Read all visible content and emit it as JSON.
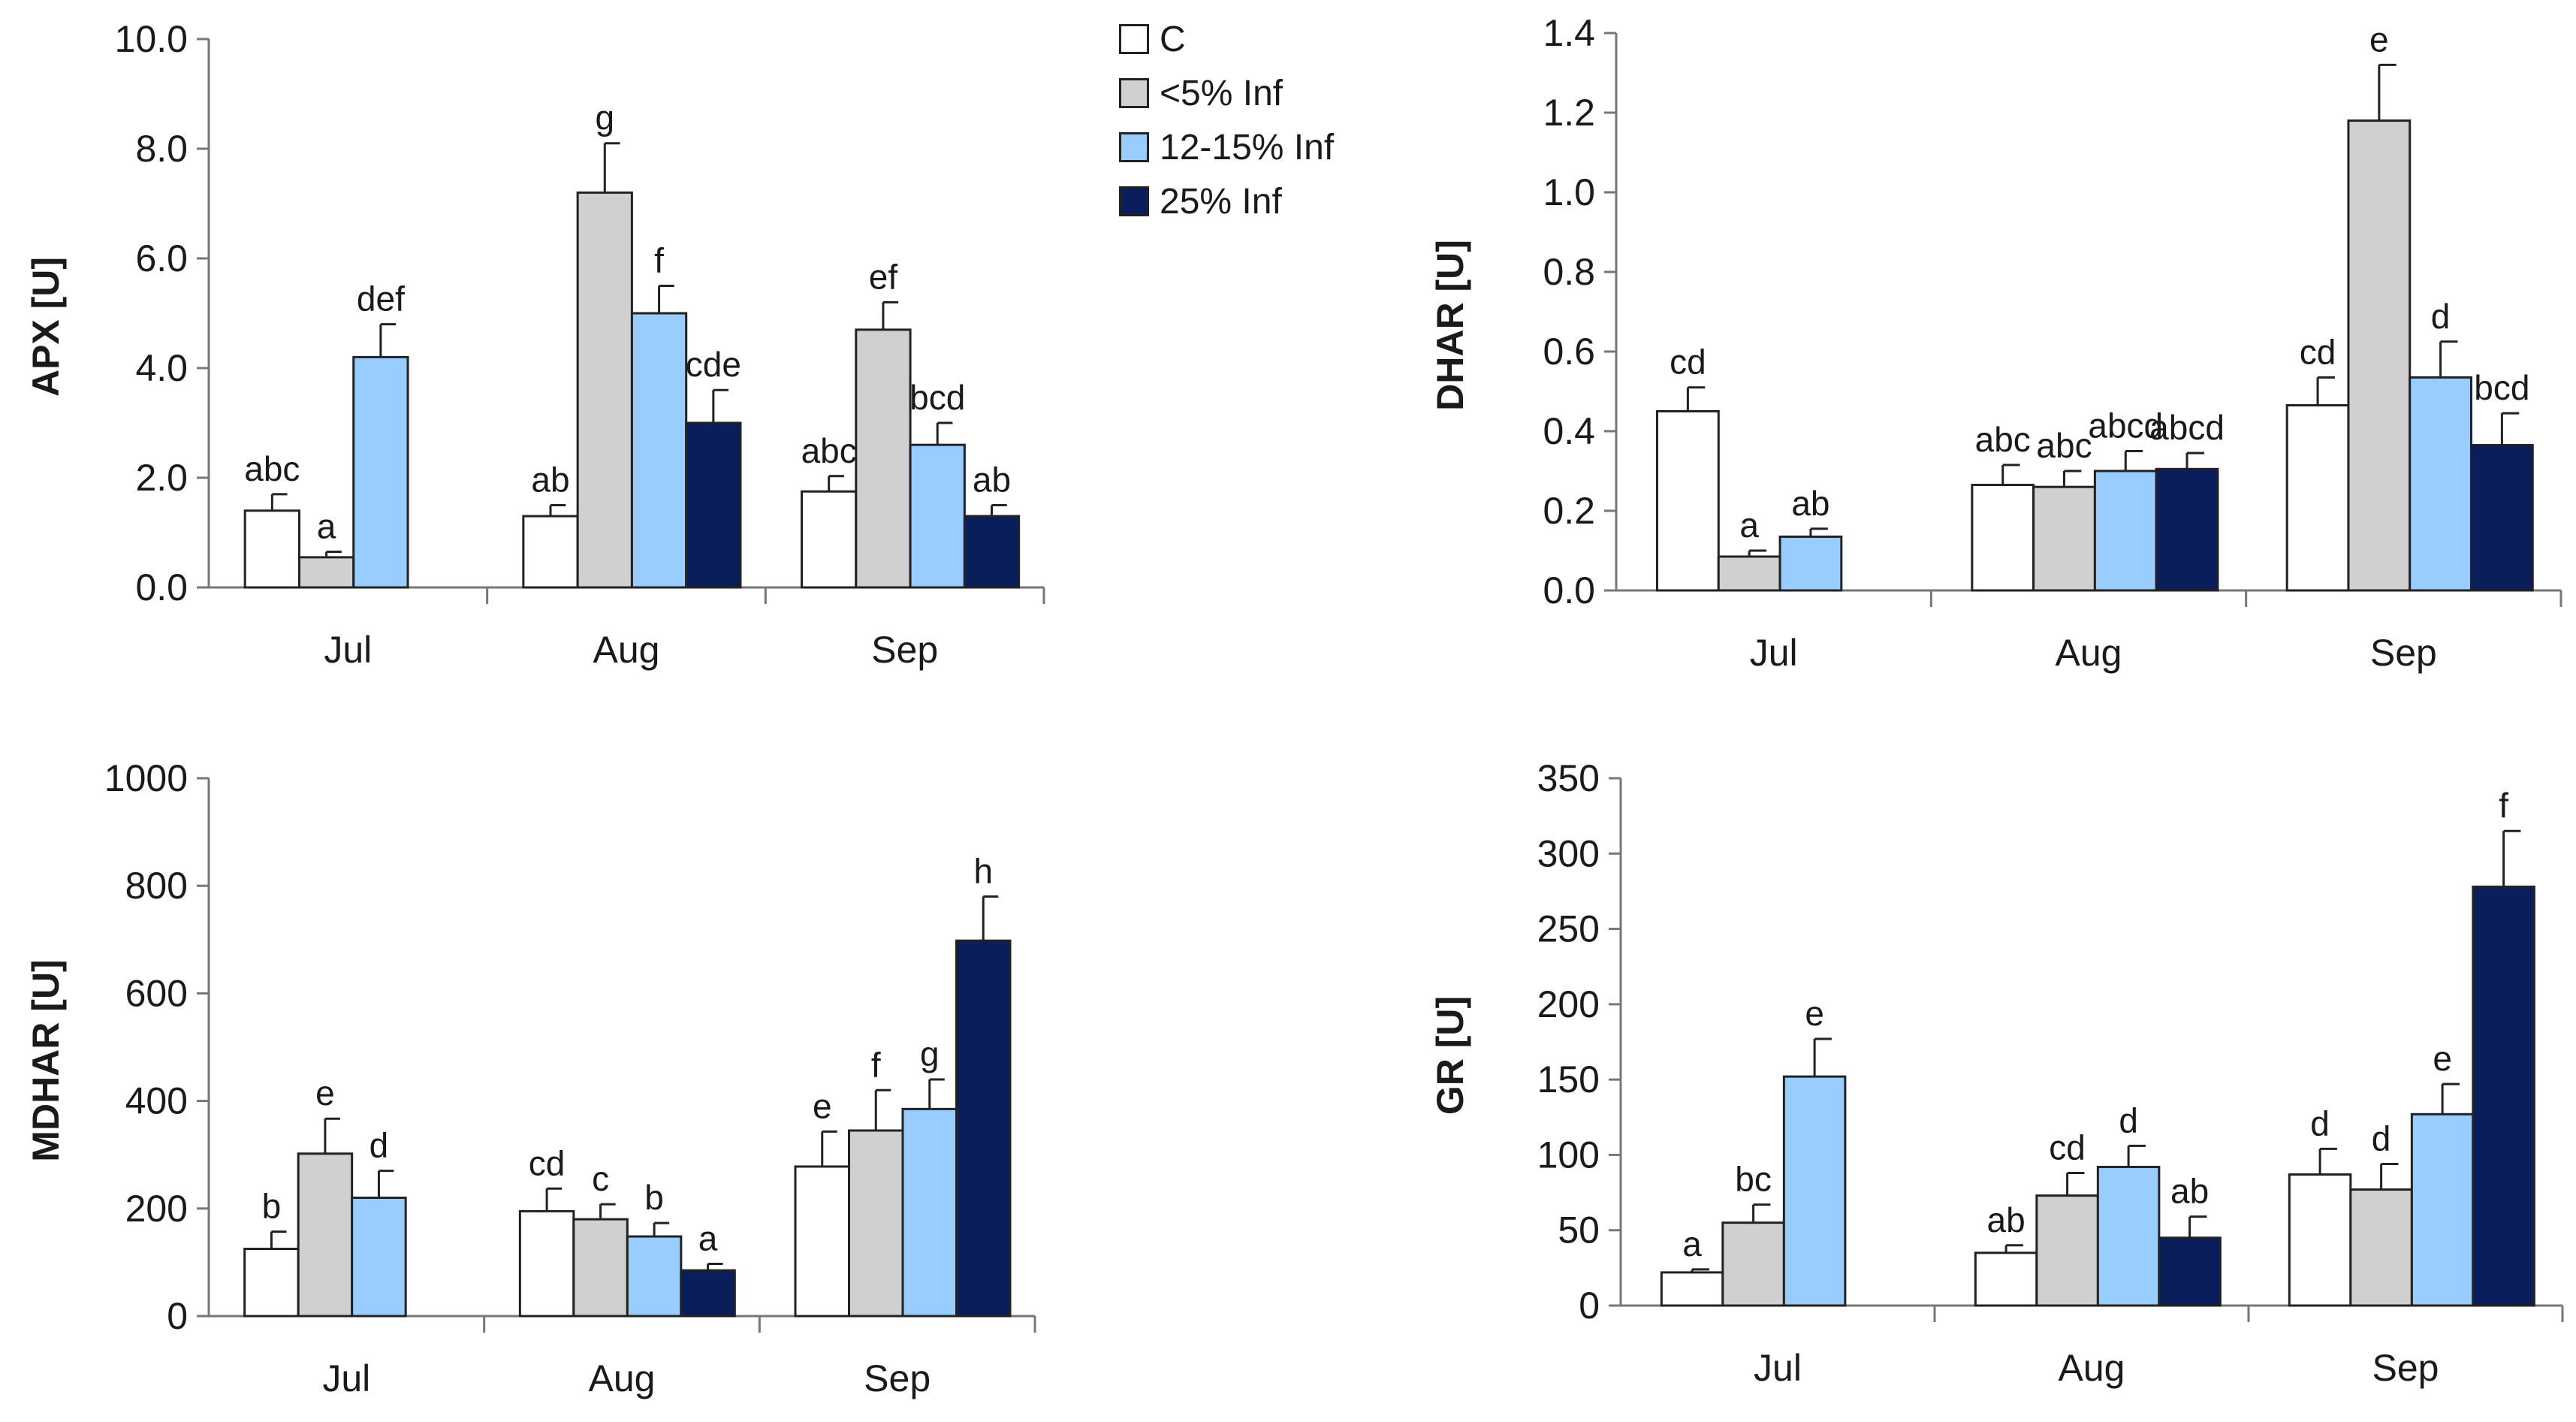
{
  "series_styles": [
    {
      "name": "C",
      "color": "#ffffff"
    },
    {
      "name": "<5% Inf",
      "color": "#d0d0d0"
    },
    {
      "name": "12-15% Inf",
      "color": "#99ccff"
    },
    {
      "name": "25% Inf",
      "color": "#0a1e5c"
    }
  ],
  "legend": {
    "items": [
      "C",
      "<5% Inf",
      "12-15% Inf",
      "25% Inf"
    ]
  },
  "chart_data": [
    {
      "type": "bar",
      "title": "",
      "xlabel": "",
      "ylabel": "APX [U]",
      "categories": [
        "Jul",
        "Aug",
        "Sep"
      ],
      "ylim": [
        0,
        10
      ],
      "yticks": [
        "0.0",
        "2.0",
        "4.0",
        "6.0",
        "8.0",
        "10.0"
      ],
      "series": [
        {
          "name": "C",
          "values": [
            1.4,
            1.3,
            1.75
          ],
          "errors": [
            0.3,
            0.2,
            0.28
          ],
          "letters": [
            "abc",
            "ab",
            "abc"
          ]
        },
        {
          "name": "<5% Inf",
          "values": [
            0.55,
            7.2,
            4.7
          ],
          "errors": [
            0.1,
            0.9,
            0.5
          ],
          "letters": [
            "a",
            "g",
            "ef"
          ]
        },
        {
          "name": "12-15% Inf",
          "values": [
            4.2,
            5.0,
            2.6
          ],
          "errors": [
            0.6,
            0.5,
            0.4
          ],
          "letters": [
            "def",
            "f",
            "bcd"
          ]
        },
        {
          "name": "25% Inf",
          "values": [
            null,
            3.0,
            1.3
          ],
          "errors": [
            null,
            0.6,
            0.2
          ],
          "letters": [
            "",
            "cde",
            "ab"
          ]
        }
      ]
    },
    {
      "type": "bar",
      "title": "",
      "xlabel": "",
      "ylabel": "DHAR [U]",
      "categories": [
        "Jul",
        "Aug",
        "Sep"
      ],
      "ylim": [
        0,
        1.4
      ],
      "yticks": [
        "0.0",
        "0.2",
        "0.4",
        "0.6",
        "0.8",
        "1.0",
        "1.2",
        "1.4"
      ],
      "series": [
        {
          "name": "C",
          "values": [
            0.45,
            0.265,
            0.465
          ],
          "errors": [
            0.06,
            0.05,
            0.07
          ],
          "letters": [
            "cd",
            "abc",
            "cd"
          ]
        },
        {
          "name": "<5% Inf",
          "values": [
            0.085,
            0.26,
            1.18
          ],
          "errors": [
            0.015,
            0.04,
            0.14
          ],
          "letters": [
            "a",
            "abc",
            "e"
          ]
        },
        {
          "name": "12-15% Inf",
          "values": [
            0.135,
            0.3,
            0.535
          ],
          "errors": [
            0.02,
            0.05,
            0.09
          ],
          "letters": [
            "ab",
            "abcd",
            "d"
          ]
        },
        {
          "name": "25% Inf",
          "values": [
            null,
            0.305,
            0.365
          ],
          "errors": [
            null,
            0.04,
            0.08
          ],
          "letters": [
            "",
            "abcd",
            "bcd"
          ]
        }
      ]
    },
    {
      "type": "bar",
      "title": "",
      "xlabel": "",
      "ylabel": "MDHAR [U]",
      "categories": [
        "Jul",
        "Aug",
        "Sep"
      ],
      "ylim": [
        0,
        1000
      ],
      "yticks": [
        "0",
        "200",
        "400",
        "600",
        "800",
        "1000"
      ],
      "series": [
        {
          "name": "C",
          "values": [
            125,
            195,
            278
          ],
          "errors": [
            32,
            42,
            65
          ],
          "letters": [
            "b",
            "cd",
            "e"
          ]
        },
        {
          "name": "<5% Inf",
          "values": [
            302,
            180,
            345
          ],
          "errors": [
            65,
            28,
            75
          ],
          "letters": [
            "e",
            "c",
            "f"
          ]
        },
        {
          "name": "12-15% Inf",
          "values": [
            220,
            148,
            385
          ],
          "errors": [
            50,
            25,
            55
          ],
          "letters": [
            "d",
            "b",
            "g"
          ]
        },
        {
          "name": "25% Inf",
          "values": [
            null,
            85,
            698
          ],
          "errors": [
            null,
            12,
            82
          ],
          "letters": [
            "",
            "a",
            "h"
          ]
        }
      ]
    },
    {
      "type": "bar",
      "title": "",
      "xlabel": "",
      "ylabel": "GR [U]",
      "categories": [
        "Jul",
        "Aug",
        "Sep"
      ],
      "ylim": [
        0,
        350
      ],
      "yticks": [
        "0",
        "50",
        "100",
        "150",
        "200",
        "250",
        "300",
        "350"
      ],
      "series": [
        {
          "name": "C",
          "values": [
            22,
            35,
            87
          ],
          "errors": [
            2,
            5,
            17
          ],
          "letters": [
            "a",
            "ab",
            "d"
          ]
        },
        {
          "name": "<5% Inf",
          "values": [
            55,
            73,
            77
          ],
          "errors": [
            12,
            15,
            17
          ],
          "letters": [
            "bc",
            "cd",
            "d"
          ]
        },
        {
          "name": "12-15% Inf",
          "values": [
            152,
            92,
            127
          ],
          "errors": [
            25,
            14,
            20
          ],
          "letters": [
            "e",
            "d",
            "e"
          ]
        },
        {
          "name": "25% Inf",
          "values": [
            null,
            45,
            278
          ],
          "errors": [
            null,
            14,
            37
          ],
          "letters": [
            "",
            "ab",
            "f"
          ]
        }
      ]
    }
  ]
}
